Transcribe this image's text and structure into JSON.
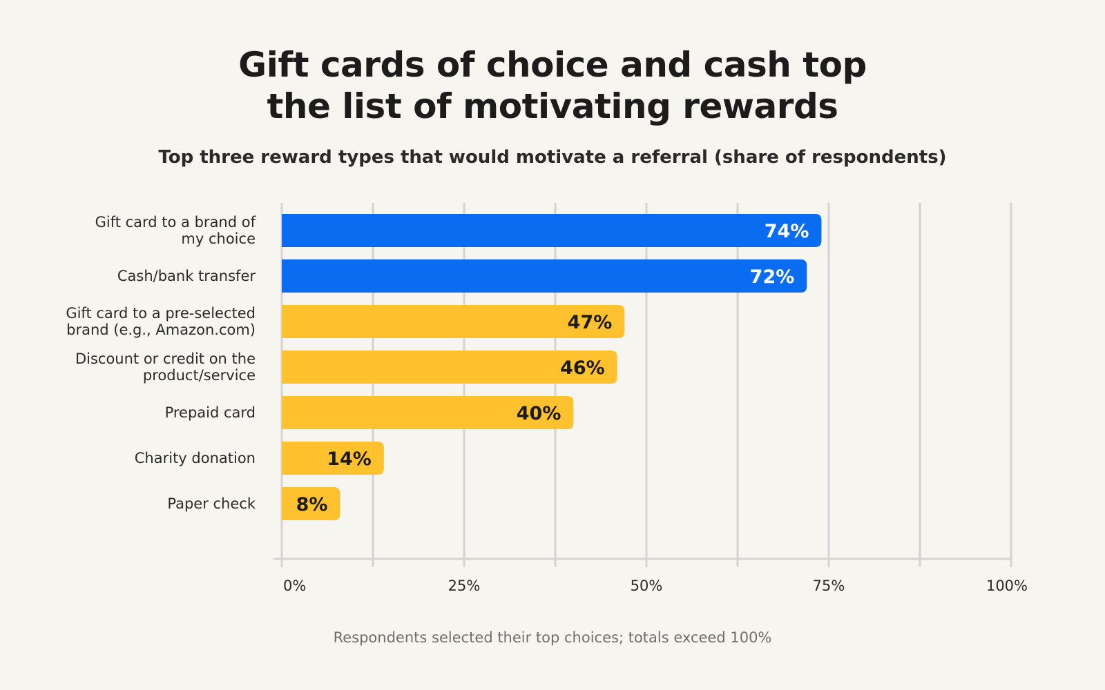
{
  "chart_data": {
    "type": "bar",
    "orientation": "horizontal",
    "title_lines": [
      "Gift cards of choice and cash top",
      "the list of motivating rewards"
    ],
    "subtitle": "Top three reward types that would motivate a referral (share of respondents)",
    "footnote": "Respondents selected their top choices; totals exceed 100%",
    "categories": [
      [
        "Gift card to a brand of",
        "my choice"
      ],
      [
        "Cash/bank transfer"
      ],
      [
        "Gift card to a pre-selected",
        "brand (e.g., Amazon.com)"
      ],
      [
        "Discount or credit on the",
        "product/service"
      ],
      [
        "Prepaid card"
      ],
      [
        "Charity donation"
      ],
      [
        "Paper check"
      ]
    ],
    "values": [
      74,
      72,
      47,
      46,
      40,
      14,
      8
    ],
    "value_labels": [
      "74%",
      "72%",
      "47%",
      "46%",
      "40%",
      "14%",
      "8%"
    ],
    "highlight": [
      true,
      true,
      false,
      false,
      false,
      false,
      false
    ],
    "xlim": [
      0,
      100
    ],
    "xticks": [
      0,
      25,
      50,
      75,
      100
    ],
    "xtick_labels": [
      "0%",
      "25%",
      "50%",
      "75%",
      "100%"
    ],
    "grid": true,
    "legend": "none",
    "colors": {
      "highlight": "#0a6cf0",
      "default": "#ffc12e",
      "highlight_text": "#ffffff",
      "default_text": "#1c1c1c",
      "grid": "#d3d3d3",
      "background": "#f7f5ef"
    }
  }
}
